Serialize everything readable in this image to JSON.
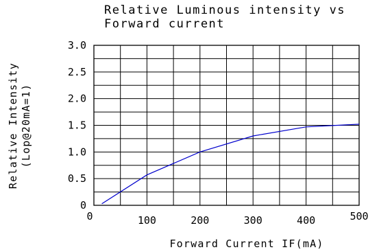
{
  "chart_data": {
    "type": "line",
    "title": [
      "Relative Luminous intensity vs",
      "Forward current"
    ],
    "xlabel": "Forward Current IF(mA)",
    "ylabel": [
      "Relative Intensity",
      "(Lop@20mA=1)"
    ],
    "xlim": [
      0,
      500
    ],
    "ylim": [
      0,
      3.0
    ],
    "x_ticks": [
      "0",
      "100",
      "200",
      "300",
      "400",
      "500"
    ],
    "y_ticks": [
      "0",
      "0.5",
      "1.0",
      "1.5",
      "2.0",
      "2.5",
      "3.0"
    ],
    "grid": true,
    "series": [
      {
        "color": "#0000cc",
        "x": [
          15,
          100,
          200,
          300,
          400,
          500
        ],
        "y": [
          0.03,
          0.57,
          1.0,
          1.3,
          1.47,
          1.52
        ]
      }
    ]
  }
}
